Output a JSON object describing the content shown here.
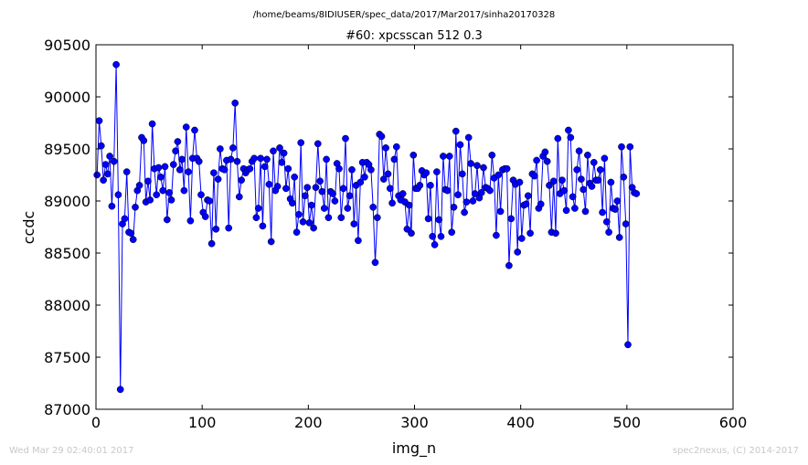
{
  "header": {
    "file_path": "/home/beams/8IDIUSER/spec_data/2017/Mar2017/sinha20170328"
  },
  "footer": {
    "timestamp": "Wed Mar 29 02:40:01 2017",
    "credit": "spec2nexus, (C) 2014-2017"
  },
  "chart_data": {
    "type": "line",
    "title": "#60: xpcsscan 512 0.3",
    "xlabel": "img_n",
    "ylabel": "ccdc",
    "xlim": [
      0,
      600
    ],
    "ylim": [
      87000,
      90500
    ],
    "xticks": [
      0,
      100,
      200,
      300,
      400,
      500,
      600
    ],
    "yticks": [
      87000,
      87500,
      88000,
      88500,
      89000,
      89500,
      90000,
      90500
    ],
    "grid": false,
    "legend": "none",
    "line_color": "#0000ff",
    "marker": "circle",
    "x_start": 1,
    "x_step": 2,
    "values": [
      89250,
      89770,
      89530,
      89200,
      89350,
      89260,
      89430,
      88950,
      89380,
      90310,
      89060,
      87190,
      88780,
      88830,
      89280,
      88700,
      88690,
      88630,
      88940,
      89100,
      89150,
      89610,
      89580,
      88990,
      89190,
      89010,
      89740,
      89310,
      89060,
      89320,
      89230,
      89100,
      89330,
      88820,
      89080,
      89010,
      89350,
      89480,
      89570,
      89300,
      89400,
      89100,
      89710,
      89280,
      88810,
      89410,
      89680,
      89410,
      89380,
      89060,
      88890,
      88850,
      89010,
      89000,
      88590,
      89270,
      88730,
      89210,
      89500,
      89310,
      89300,
      89390,
      88740,
      89400,
      89510,
      89940,
      89380,
      89040,
      89200,
      89310,
      89270,
      89300,
      89310,
      89380,
      89410,
      88840,
      88930,
      89410,
      88760,
      89330,
      89400,
      89160,
      88610,
      89480,
      89100,
      89140,
      89510,
      89370,
      89460,
      89120,
      89310,
      89020,
      88980,
      89230,
      88700,
      88870,
      89560,
      88800,
      89050,
      89130,
      88790,
      88960,
      88740,
      89130,
      89550,
      89190,
      89090,
      88930,
      89400,
      88840,
      89090,
      89070,
      89000,
      89360,
      89310,
      88840,
      89120,
      89600,
      88930,
      89050,
      89300,
      88780,
      89150,
      88620,
      89180,
      89370,
      89230,
      89370,
      89350,
      89300,
      88940,
      88410,
      88840,
      89640,
      89620,
      89210,
      89510,
      89260,
      89120,
      88980,
      89400,
      89520,
      89050,
      89010,
      89070,
      88990,
      88730,
      88960,
      88690,
      89440,
      89120,
      89120,
      89150,
      89290,
      89250,
      89270,
      88830,
      89150,
      88660,
      88580,
      89280,
      88820,
      88660,
      89430,
      89110,
      89100,
      89430,
      88700,
      88940,
      89670,
      89060,
      89540,
      89260,
      88890,
      88990,
      89610,
      89360,
      89000,
      89070,
      89340,
      89030,
      89080,
      89320,
      89130,
      89120,
      89100,
      89440,
      89220,
      88670,
      89250,
      88900,
      89300,
      89310,
      89310,
      88380,
      88830,
      89200,
      89160,
      88510,
      89180,
      88640,
      88960,
      88970,
      89050,
      88690,
      89260,
      89240,
      89390,
      88930,
      88970,
      89430,
      89470,
      89380,
      89150,
      88700,
      89190,
      88690,
      89600,
      89070,
      89200,
      89100,
      88910,
      89680,
      89610,
      89040,
      88930,
      89300,
      89480,
      89210,
      89110,
      88900,
      89440,
      89170,
      89140,
      89370,
      89200,
      89200,
      89300,
      88890,
      89410,
      88800,
      88700,
      89180,
      88930,
      88920,
      89000,
      88650,
      89520,
      89230,
      88780,
      87620,
      89520,
      89130,
      89080,
      89070
    ]
  }
}
